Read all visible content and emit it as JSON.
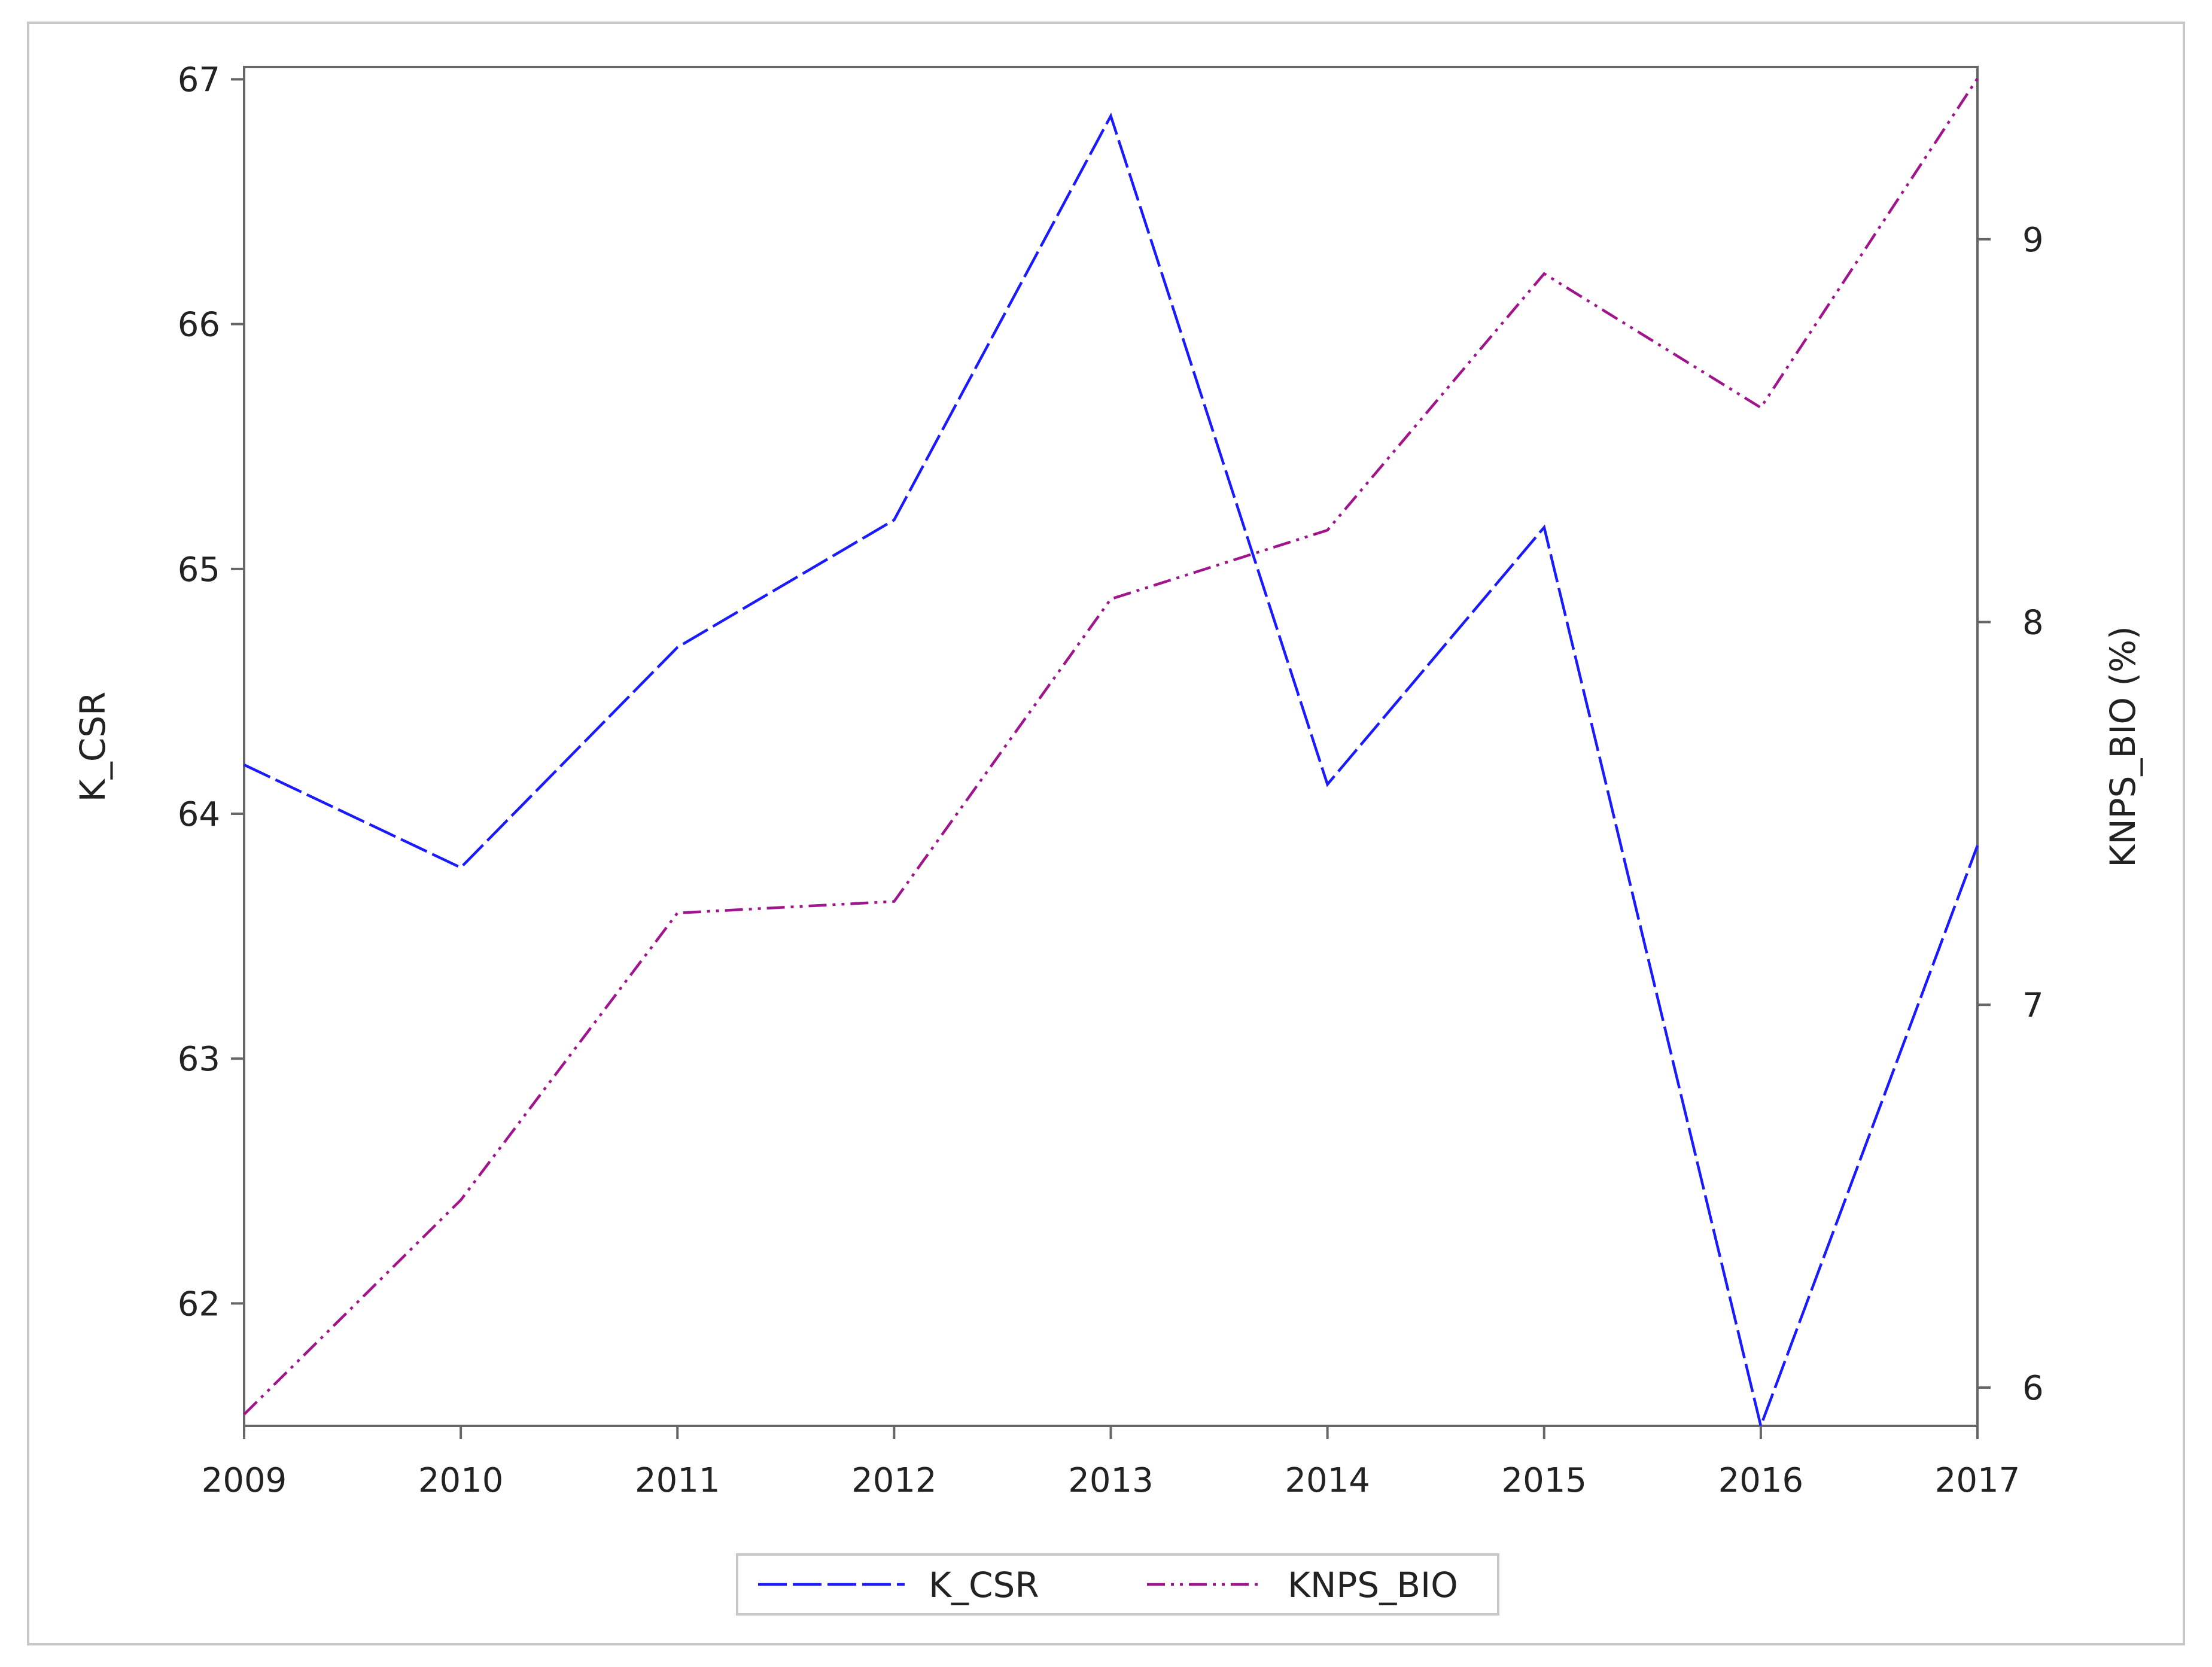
{
  "chart_data": {
    "type": "line",
    "title": "",
    "xlabel": "",
    "ylabel": "K_CSR",
    "y2label": "KNPS_BIO (%)",
    "x": [
      "2009",
      "2010",
      "2011",
      "2012",
      "2013",
      "2014",
      "2015",
      "2016",
      "2017"
    ],
    "xlim": [
      2009,
      2017
    ],
    "ylim": [
      61.5,
      67.05
    ],
    "y2lim": [
      5.9,
      9.45
    ],
    "yticks": [
      62,
      63,
      64,
      65,
      66,
      67
    ],
    "y2ticks": [
      6,
      7,
      8,
      9
    ],
    "series": [
      {
        "name": "K_CSR",
        "axis": "left",
        "color": "#1a1aff",
        "dash": "long-dash",
        "values": [
          64.2,
          63.78,
          64.68,
          65.2,
          66.85,
          64.12,
          65.17,
          61.5,
          63.87
        ]
      },
      {
        "name": "KNPS_BIO",
        "axis": "right",
        "color": "#a0158c",
        "dash": "dash-dot-dot",
        "values": [
          5.93,
          6.49,
          7.24,
          7.27,
          8.06,
          8.24,
          8.91,
          8.56,
          9.42
        ]
      }
    ],
    "grid": false,
    "legend_position": "bottom-center"
  }
}
